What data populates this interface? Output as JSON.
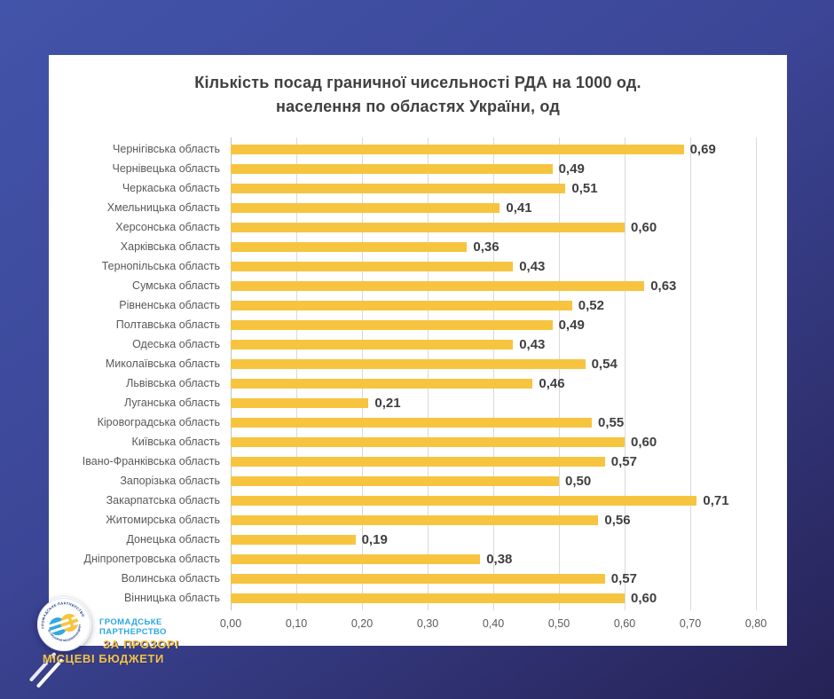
{
  "page": {
    "background_top_color": "#4254a9",
    "background_bottom_color": "#262256",
    "card_color": "#ffffff"
  },
  "logo": {
    "partner_line1": "ГРОМАДСЬКЕ",
    "partner_line2": "ПАРТНЕРСТВО",
    "tagline_line1": "ЗА ПРОЗОРІ",
    "tagline_line2": "МІСЦЕВІ БЮДЖЕТИ",
    "blue": "#29a8e0",
    "yellow": "#f6c23e"
  },
  "chart_data": {
    "type": "bar",
    "orientation": "horizontal",
    "title_lines": [
      "Кількість посад граничної чисельності РДА на 1000 од.",
      "населення по областях України, од"
    ],
    "categories": [
      "Чернігівська область",
      "Чернівецька область",
      "Черкаська область",
      "Хмельницька область",
      "Херсонська область",
      "Харківська область",
      "Тернопільська область",
      "Сумська область",
      "Рівненська область",
      "Полтавська область",
      "Одеська область",
      "Миколаївська область",
      "Львівська область",
      "Луганська область",
      "Кіровоградська область",
      "Київська область",
      "Івано-Франківська область",
      "Запорізька область",
      "Закарпатська область",
      "Житомирська область",
      "Донецька область",
      "Дніпропетровська область",
      "Волинська область",
      "Вінницька область"
    ],
    "values": [
      0.69,
      0.49,
      0.51,
      0.41,
      0.6,
      0.36,
      0.43,
      0.63,
      0.52,
      0.49,
      0.43,
      0.54,
      0.46,
      0.21,
      0.55,
      0.6,
      0.57,
      0.5,
      0.71,
      0.56,
      0.19,
      0.38,
      0.57,
      0.6
    ],
    "value_labels": [
      "0,69",
      "0,49",
      "0,51",
      "0,41",
      "0,60",
      "0,36",
      "0,43",
      "0,63",
      "0,52",
      "0,49",
      "0,43",
      "0,54",
      "0,46",
      "0,21",
      "0,55",
      "0,60",
      "0,57",
      "0,50",
      "0,71",
      "0,56",
      "0,19",
      "0,38",
      "0,57",
      "0,60"
    ],
    "x_ticks": [
      "0,00",
      "0,10",
      "0,20",
      "0,30",
      "0,40",
      "0,50",
      "0,60",
      "0,70",
      "0,80"
    ],
    "xlim": [
      0,
      0.8
    ],
    "xlabel": "",
    "ylabel": "",
    "bar_color": "#f7c440",
    "gridlines": true,
    "legend": "none"
  }
}
